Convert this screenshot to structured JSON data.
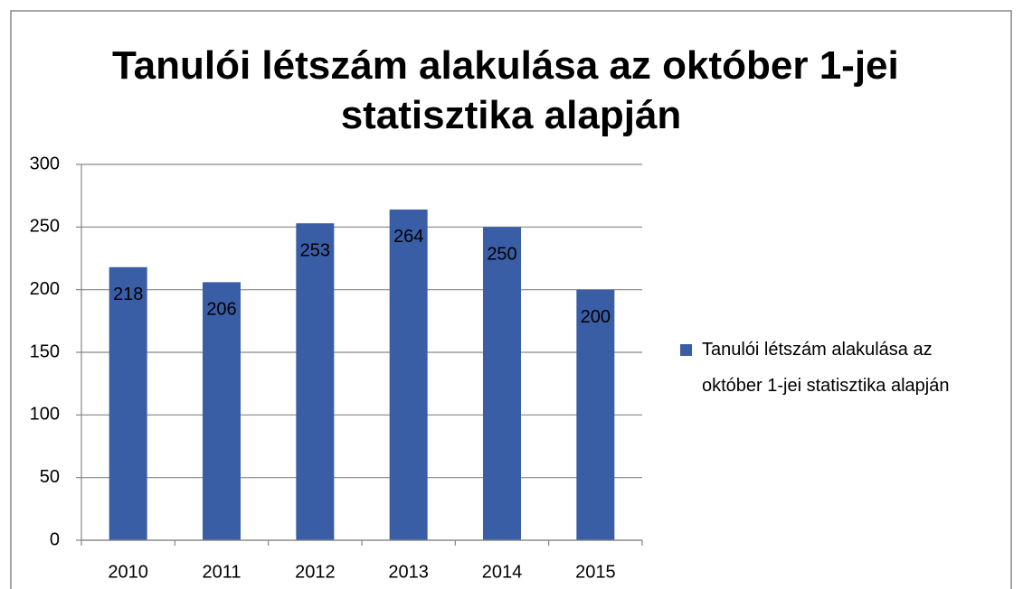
{
  "chart_data": {
    "type": "bar",
    "title": "Tanulói létszám alakulása az október 1-jei statisztika alapján",
    "categories": [
      "2010",
      "2011",
      "2012",
      "2013",
      "2014",
      "2015"
    ],
    "series": [
      {
        "name": "Tanulói létszám alakulása az október 1-jei statisztika alapján",
        "color": "#3a5ea6",
        "values": [
          218,
          206,
          253,
          264,
          250,
          200
        ]
      }
    ],
    "ylim": [
      0,
      300
    ],
    "yticks": [
      0,
      50,
      100,
      150,
      200,
      250,
      300
    ],
    "grid": true,
    "legend": "right"
  }
}
